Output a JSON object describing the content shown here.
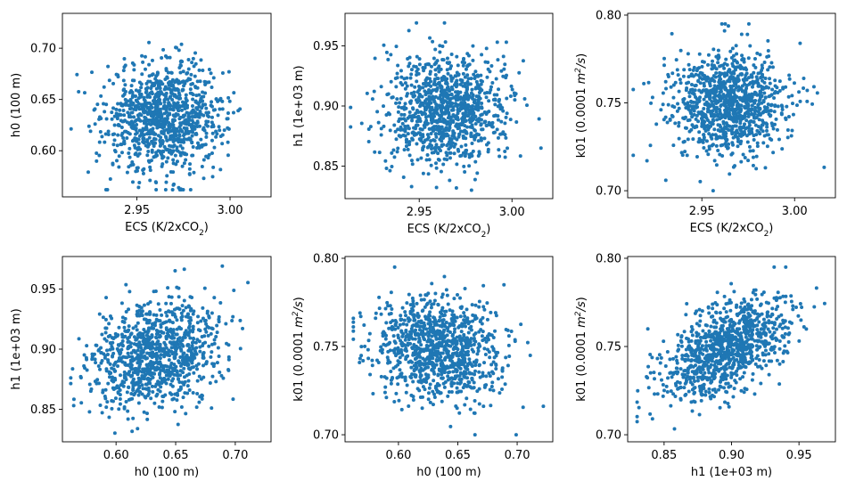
{
  "chart_data": [
    {
      "type": "scatter",
      "id": "ecs-h0",
      "xlabel": "ECS (K/2xCO₂)",
      "ylabel": "h0 (100 m)",
      "xlim": [
        2.91,
        3.022
      ],
      "ylim": [
        0.555,
        0.734
      ],
      "xticks": [
        2.95,
        3.0
      ],
      "xtick_labels": [
        "2.95",
        "3.00"
      ],
      "yticks": [
        0.6,
        0.65,
        0.7
      ],
      "ytick_labels": [
        "0.60",
        "0.65",
        "0.70"
      ],
      "n_points": 1000,
      "x_stats": {
        "mean": 2.965,
        "sd": 0.0158,
        "min": 2.913,
        "max": 3.018
      },
      "y_stats": {
        "mean": 0.633,
        "sd": 0.0265,
        "min": 0.562,
        "max": 0.725
      },
      "correlation": 0.0,
      "color": "#1f77b4"
    },
    {
      "type": "scatter",
      "id": "ecs-h1",
      "xlabel": "ECS (K/2xCO₂)",
      "ylabel": "h1 (1e+03 m)",
      "xlim": [
        2.91,
        3.022
      ],
      "ylim": [
        0.823,
        0.977
      ],
      "xticks": [
        2.95,
        3.0
      ],
      "xtick_labels": [
        "2.95",
        "3.00"
      ],
      "yticks": [
        0.85,
        0.9,
        0.95
      ],
      "ytick_labels": [
        "0.85",
        "0.90",
        "0.95"
      ],
      "n_points": 1000,
      "x_stats": {
        "mean": 2.965,
        "sd": 0.0158,
        "min": 2.913,
        "max": 3.018
      },
      "y_stats": {
        "mean": 0.897,
        "sd": 0.023,
        "min": 0.83,
        "max": 0.969
      },
      "correlation": 0.0,
      "color": "#1f77b4"
    },
    {
      "type": "scatter",
      "id": "ecs-k01",
      "xlabel": "ECS (K/2xCO₂)",
      "ylabel": "k01 (0.0001 m²/s)",
      "xlim": [
        2.91,
        3.022
      ],
      "ylim": [
        0.696,
        0.801
      ],
      "xticks": [
        2.95,
        3.0
      ],
      "xtick_labels": [
        "2.95",
        "3.00"
      ],
      "yticks": [
        0.7,
        0.75,
        0.8
      ],
      "ytick_labels": [
        "0.70",
        "0.75",
        "0.80"
      ],
      "n_points": 1000,
      "x_stats": {
        "mean": 2.965,
        "sd": 0.0158,
        "min": 2.913,
        "max": 3.018
      },
      "y_stats": {
        "mean": 0.749,
        "sd": 0.015,
        "min": 0.7,
        "max": 0.795
      },
      "correlation": 0.0,
      "color": "#1f77b4"
    },
    {
      "type": "scatter",
      "id": "h0-h1",
      "xlabel": "h0 (100 m)",
      "ylabel": "h1 (1e+03 m)",
      "xlim": [
        0.555,
        0.73
      ],
      "ylim": [
        0.823,
        0.977
      ],
      "xticks": [
        0.6,
        0.65,
        0.7
      ],
      "xtick_labels": [
        "0.60",
        "0.65",
        "0.70"
      ],
      "yticks": [
        0.85,
        0.9,
        0.95
      ],
      "ytick_labels": [
        "0.85",
        "0.90",
        "0.95"
      ],
      "n_points": 1000,
      "x_stats": {
        "mean": 0.633,
        "sd": 0.0265,
        "min": 0.562,
        "max": 0.725
      },
      "y_stats": {
        "mean": 0.897,
        "sd": 0.023,
        "min": 0.83,
        "max": 0.969
      },
      "correlation": 0.25,
      "color": "#1f77b4"
    },
    {
      "type": "scatter",
      "id": "h0-k01",
      "xlabel": "h0 (100 m)",
      "ylabel": "k01 (0.0001 m²/s)",
      "xlim": [
        0.555,
        0.73
      ],
      "ylim": [
        0.696,
        0.801
      ],
      "xticks": [
        0.6,
        0.65,
        0.7
      ],
      "xtick_labels": [
        "0.60",
        "0.65",
        "0.70"
      ],
      "yticks": [
        0.7,
        0.75,
        0.8
      ],
      "ytick_labels": [
        "0.70",
        "0.75",
        "0.80"
      ],
      "n_points": 1000,
      "x_stats": {
        "mean": 0.633,
        "sd": 0.0265,
        "min": 0.562,
        "max": 0.725
      },
      "y_stats": {
        "mean": 0.749,
        "sd": 0.015,
        "min": 0.7,
        "max": 0.795
      },
      "correlation": -0.2,
      "color": "#1f77b4"
    },
    {
      "type": "scatter",
      "id": "h1-k01",
      "xlabel": "h1 (1e+03 m)",
      "ylabel": "k01 (0.0001 m²/s)",
      "xlim": [
        0.823,
        0.977
      ],
      "ylim": [
        0.696,
        0.801
      ],
      "xticks": [
        0.85,
        0.9,
        0.95
      ],
      "xtick_labels": [
        "0.85",
        "0.90",
        "0.95"
      ],
      "yticks": [
        0.7,
        0.75,
        0.8
      ],
      "ytick_labels": [
        "0.70",
        "0.75",
        "0.80"
      ],
      "n_points": 1000,
      "x_stats": {
        "mean": 0.897,
        "sd": 0.023,
        "min": 0.83,
        "max": 0.969
      },
      "y_stats": {
        "mean": 0.749,
        "sd": 0.015,
        "min": 0.7,
        "max": 0.795
      },
      "correlation": 0.55,
      "color": "#1f77b4"
    }
  ]
}
